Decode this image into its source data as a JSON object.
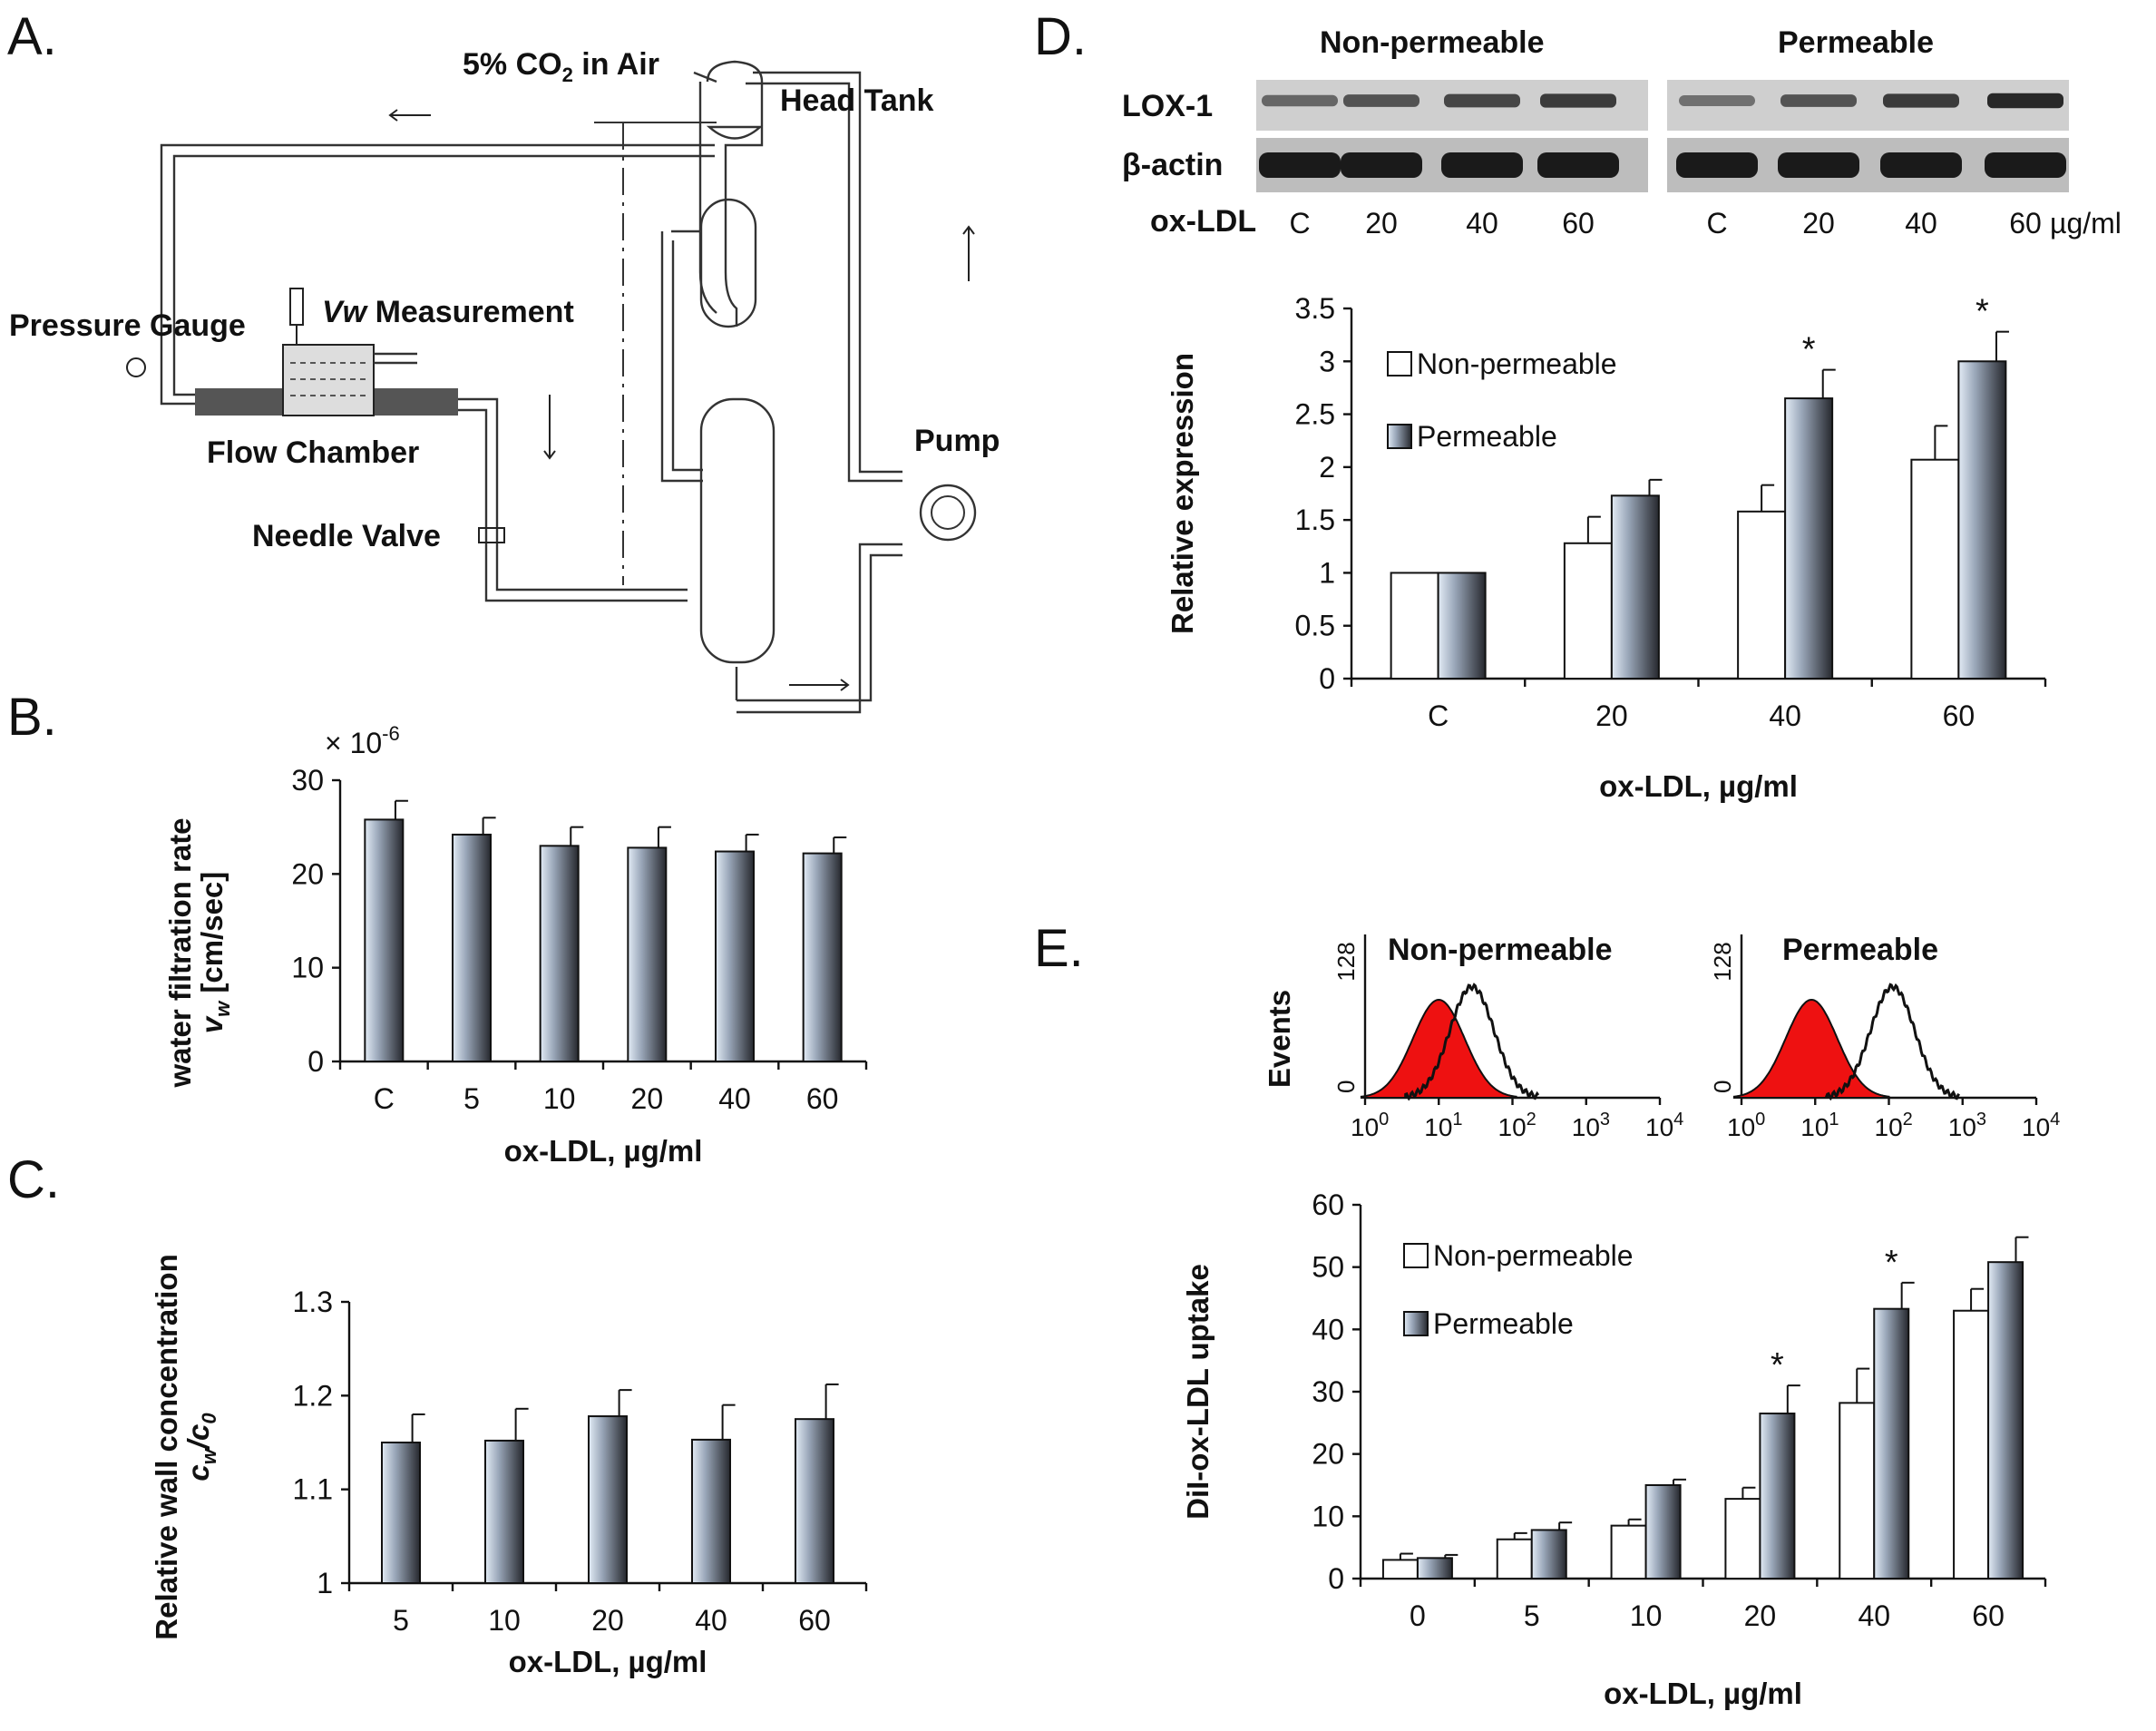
{
  "panels": {
    "A": "A.",
    "B": "B.",
    "C": "C.",
    "D": "D.",
    "E": "E."
  },
  "apparatus": {
    "co2_label": "5% CO",
    "co2_sub": "2",
    "co2_tail": " in Air",
    "head_tank": "Head Tank",
    "pressure_gauge": "Pressure Gauge",
    "vw_label": "Vw",
    "measurement": " Measurement",
    "flow_chamber": "Flow Chamber",
    "needle_valve": "Needle Valve",
    "pump": "Pump"
  },
  "blot": {
    "group_labels": [
      "Non-permeable",
      "Permeable"
    ],
    "row_labels": [
      "LOX-1",
      "β-actin"
    ],
    "oxldl_label": "ox-LDL",
    "lane_labels": [
      "C",
      "20",
      "40",
      "60",
      "C",
      "20",
      "40",
      "60"
    ],
    "unit": "µg/ml",
    "lox1_intensity": [
      0.55,
      0.65,
      0.72,
      0.78,
      0.5,
      0.65,
      0.78,
      0.88
    ],
    "actin_intensity": [
      0.95,
      0.95,
      0.95,
      0.95,
      0.95,
      0.95,
      0.95,
      0.95
    ]
  },
  "flow": {
    "events_label": "Events",
    "ymax_label": "128",
    "ymin_label": "0",
    "titles": [
      "Non-permeable",
      "Permeable"
    ],
    "decade_labels": [
      "10",
      "10",
      "10",
      "10",
      "10"
    ],
    "decade_exps": [
      "0",
      "1",
      "2",
      "3",
      "4"
    ],
    "red_peak_log": [
      1.0,
      0.95
    ],
    "black_peak_log": [
      1.45,
      2.05
    ],
    "red_fill": "#ee1111"
  },
  "chart_data": [
    {
      "id": "B",
      "type": "bar",
      "title": "",
      "multiplier": "× 10",
      "multiplier_exp": "-6",
      "ylabel": "water filtration rate",
      "ylabel2_var": "v",
      "ylabel2_sub": "w",
      "ylabel2_unit": "[cm/sec]",
      "xlabel": "ox-LDL, µg/ml",
      "categories": [
        "C",
        "5",
        "10",
        "20",
        "40",
        "60"
      ],
      "yticks": [
        "0",
        "10",
        "20",
        "30"
      ],
      "ylim": [
        0,
        30
      ],
      "series": [
        {
          "name": "vw",
          "values": [
            25.8,
            24.2,
            23.0,
            22.8,
            22.4,
            22.2
          ],
          "errors": [
            2.0,
            1.8,
            2.0,
            2.2,
            1.8,
            1.7
          ],
          "style": "gradient"
        }
      ]
    },
    {
      "id": "C",
      "type": "bar",
      "title": "",
      "ylabel": "Relative wall concentration",
      "ylabel2_var": "c",
      "ylabel2_sub": "w",
      "ylabel2_mid": "/c",
      "ylabel2_sub2": "0",
      "xlabel": "ox-LDL, µg/ml",
      "categories": [
        "5",
        "10",
        "20",
        "40",
        "60"
      ],
      "yticks": [
        "1",
        "1.1",
        "1.2",
        "1.3"
      ],
      "ylim": [
        1.0,
        1.3
      ],
      "series": [
        {
          "name": "cw/c0",
          "values": [
            1.15,
            1.152,
            1.178,
            1.153,
            1.175
          ],
          "errors": [
            0.03,
            0.034,
            0.028,
            0.037,
            0.037
          ],
          "style": "gradient"
        }
      ]
    },
    {
      "id": "D",
      "type": "bar",
      "title": "",
      "ylabel": "Relative expression",
      "xlabel": "ox-LDL, µg/ml",
      "categories": [
        "C",
        "20",
        "40",
        "60"
      ],
      "yticks": [
        "0",
        "0.5",
        "1",
        "1.5",
        "2",
        "2.5",
        "3",
        "3.5"
      ],
      "ylim": [
        0,
        3.5
      ],
      "legend_position": "top-left",
      "series": [
        {
          "name": "Non-permeable",
          "values": [
            1.0,
            1.28,
            1.58,
            2.07
          ],
          "errors": [
            0,
            0.25,
            0.25,
            0.32
          ],
          "style": "white"
        },
        {
          "name": "Permeable",
          "values": [
            1.0,
            1.73,
            2.65,
            3.0
          ],
          "errors": [
            0,
            0.15,
            0.27,
            0.28
          ],
          "style": "gradient"
        }
      ],
      "significance": [
        "",
        "",
        "*",
        "*"
      ]
    },
    {
      "id": "E",
      "type": "bar",
      "title": "",
      "ylabel": "DiI-ox-LDL uptake",
      "xlabel": "ox-LDL, µg/ml",
      "categories": [
        "0",
        "5",
        "10",
        "20",
        "40",
        "60"
      ],
      "yticks": [
        "0",
        "10",
        "20",
        "30",
        "40",
        "50",
        "60"
      ],
      "ylim": [
        0,
        60
      ],
      "legend_position": "top-left",
      "series": [
        {
          "name": "Non-permeable",
          "values": [
            3.0,
            6.3,
            8.5,
            12.8,
            28.2,
            43.0
          ],
          "errors": [
            1.0,
            1.0,
            1.0,
            1.8,
            5.5,
            3.5
          ],
          "style": "white"
        },
        {
          "name": "Permeable",
          "values": [
            3.3,
            7.8,
            15.0,
            26.5,
            43.3,
            50.8
          ],
          "errors": [
            0.5,
            1.2,
            0.9,
            4.5,
            4.2,
            4.0
          ],
          "style": "gradient"
        }
      ],
      "significance": [
        "",
        "",
        "",
        "*",
        "*",
        ""
      ]
    }
  ]
}
